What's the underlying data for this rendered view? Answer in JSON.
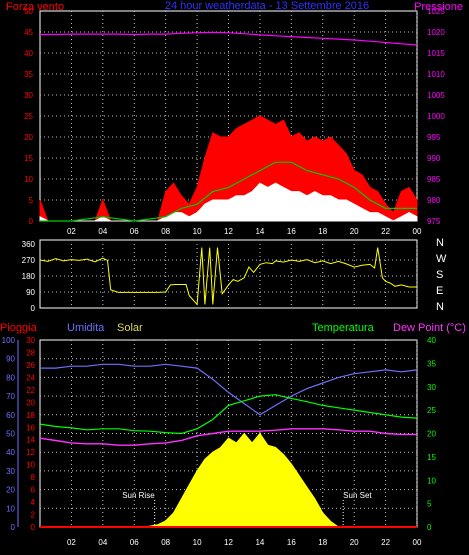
{
  "header": {
    "left_label": "Forza vento",
    "title": "24 hour weatherdata - 13 Settembre 2016",
    "right_label": "Pressione"
  },
  "x_ticks": [
    "02",
    "04",
    "06",
    "08",
    "10",
    "12",
    "14",
    "16",
    "18",
    "20",
    "22",
    "00"
  ],
  "colors": {
    "wind_gust": "#ff0000",
    "wind_avg": "#ffffff",
    "wind_avg2": "#00cc00",
    "pressure": "#ff00ff",
    "direction": "#ffff00",
    "rain": "#ff0000",
    "humidity": "#6f6fff",
    "solar": "#ffff00",
    "temperature": "#00ff00",
    "dew_point": "#ff33ff",
    "grid": "#c0c0c0",
    "frame": "#ffffff",
    "title": "#3030ff"
  },
  "chart_data": [
    {
      "type": "line",
      "name": "wind-pressure",
      "title": "24 hour weatherdata - 13 Settembre 2016",
      "x_ticks": [
        "02",
        "04",
        "06",
        "08",
        "10",
        "12",
        "14",
        "16",
        "18",
        "20",
        "22",
        "00"
      ],
      "y_left": {
        "label": "Forza vento",
        "range": [
          0,
          50
        ],
        "ticks": [
          0,
          5,
          10,
          15,
          20,
          25,
          30,
          35,
          40,
          45,
          50
        ]
      },
      "y_right": {
        "label": "Pressione",
        "range": [
          975,
          1025
        ],
        "ticks": [
          975,
          980,
          985,
          990,
          995,
          1000,
          1005,
          1010,
          1015,
          1020,
          1025
        ]
      },
      "grid": true,
      "series": [
        {
          "name": "gust",
          "axis": "left",
          "x": [
            0,
            0.5,
            1,
            1.5,
            2,
            2.5,
            3,
            3.5,
            4,
            4.5,
            5,
            5.5,
            6,
            6.5,
            7,
            7.5,
            8,
            8.5,
            9,
            9.5,
            10,
            10.5,
            11,
            11.5,
            12,
            12.5,
            13,
            13.5,
            14,
            14.5,
            15,
            15.5,
            16,
            16.5,
            17,
            17.5,
            18,
            18.5,
            19,
            19.5,
            20,
            20.5,
            21,
            21.5,
            22,
            22.5,
            23,
            23.5,
            24
          ],
          "values": [
            5,
            0,
            0,
            0,
            0,
            0,
            0,
            0,
            5,
            0,
            0,
            0,
            0,
            0,
            0,
            0,
            7,
            9,
            6,
            4,
            8,
            15,
            21,
            20,
            20,
            22,
            23,
            24,
            25,
            24,
            23,
            24,
            20,
            21,
            19,
            20,
            19,
            20,
            18,
            16,
            12,
            11,
            8,
            7,
            4,
            2,
            7,
            8,
            5
          ]
        },
        {
          "name": "average",
          "axis": "left",
          "x": [
            0,
            0.5,
            1,
            1.5,
            2,
            2.5,
            3,
            3.5,
            4,
            4.5,
            5,
            5.5,
            6,
            6.5,
            7,
            7.5,
            8,
            8.5,
            9,
            9.5,
            10,
            10.5,
            11,
            11.5,
            12,
            12.5,
            13,
            13.5,
            14,
            14.5,
            15,
            15.5,
            16,
            16.5,
            17,
            17.5,
            18,
            18.5,
            19,
            19.5,
            20,
            20.5,
            21,
            21.5,
            22,
            22.5,
            23,
            23.5,
            24
          ],
          "values": [
            1,
            0,
            0,
            0,
            0,
            0,
            0,
            0,
            1,
            0,
            0,
            0,
            0,
            0,
            0,
            0,
            1,
            2,
            2,
            1,
            2,
            4,
            5,
            5,
            5,
            6,
            6,
            7,
            9,
            8,
            9,
            8,
            7,
            7,
            6,
            7,
            6,
            6,
            5,
            5,
            4,
            3,
            2,
            2,
            1,
            0,
            1,
            2,
            1
          ]
        },
        {
          "name": "avg-smooth",
          "axis": "left",
          "x": [
            0,
            2,
            4,
            6,
            8,
            9,
            10,
            11,
            12,
            13,
            14,
            15,
            16,
            17,
            18,
            19,
            20,
            21,
            22,
            23,
            24
          ],
          "values": [
            0,
            0,
            1,
            0,
            1,
            3,
            4,
            7,
            8,
            10,
            12,
            14,
            14,
            12,
            11,
            10,
            8,
            5,
            3,
            3,
            3
          ]
        },
        {
          "name": "pressure",
          "axis": "right",
          "x": [
            0,
            1,
            2,
            3,
            4,
            5,
            6,
            7,
            8,
            9,
            10,
            11,
            12,
            13,
            14,
            15,
            16,
            17,
            18,
            19,
            20,
            21,
            22,
            23,
            24
          ],
          "values": [
            1019.4,
            1019.4,
            1019.5,
            1019.5,
            1019.5,
            1019.5,
            1019.4,
            1019.5,
            1019.5,
            1019.7,
            1019.8,
            1019.9,
            1019.8,
            1019.6,
            1019.3,
            1019.1,
            1018.9,
            1018.7,
            1018.5,
            1018.3,
            1018.1,
            1017.8,
            1017.5,
            1017.2,
            1016.9
          ]
        }
      ]
    },
    {
      "type": "line",
      "name": "wind-direction",
      "x_ticks": [
        "02",
        "04",
        "06",
        "08",
        "10",
        "12",
        "14",
        "16",
        "18",
        "20",
        "22",
        "00"
      ],
      "y_left": {
        "range": [
          0,
          360
        ],
        "ticks": [
          0,
          90,
          180,
          270,
          360
        ]
      },
      "y_right": {
        "ticks": [
          "N",
          "W",
          "S",
          "E",
          "N"
        ]
      },
      "grid": true,
      "series": [
        {
          "name": "direction",
          "x": [
            0,
            0.5,
            1,
            1.5,
            2,
            2.5,
            3,
            3.5,
            4,
            4.3,
            4.5,
            5,
            6,
            7,
            7.5,
            8,
            8.3,
            8.6,
            9,
            9.3,
            9.5,
            10,
            10.3,
            10.5,
            10.8,
            11,
            11.3,
            11.6,
            12,
            12.3,
            12.6,
            13,
            13.3,
            13.6,
            14,
            14.4,
            14.8,
            15,
            15.5,
            16,
            16.5,
            17,
            17.5,
            18,
            18.5,
            19,
            19.5,
            20,
            20.5,
            21,
            21.3,
            21.5,
            21.8,
            22,
            22.3,
            22.6,
            23,
            23.5,
            24
          ],
          "values": [
            270,
            262,
            278,
            265,
            272,
            268,
            275,
            260,
            280,
            268,
            102,
            88,
            88,
            88,
            88,
            90,
            130,
            132,
            132,
            132,
            70,
            20,
            340,
            20,
            340,
            20,
            340,
            80,
            130,
            160,
            150,
            170,
            230,
            200,
            245,
            255,
            250,
            265,
            258,
            270,
            262,
            272,
            255,
            265,
            250,
            262,
            248,
            230,
            240,
            245,
            225,
            340,
            170,
            150,
            140,
            122,
            130,
            118,
            118
          ]
        }
      ]
    },
    {
      "type": "line",
      "name": "temperature-humidity",
      "x_ticks": [
        "02",
        "04",
        "06",
        "08",
        "10",
        "12",
        "14",
        "16",
        "18",
        "20",
        "22",
        "00"
      ],
      "labels": {
        "rain": "Pioggia",
        "humidity": "Umidita",
        "solar": "Solar",
        "temperature": "Temperatura",
        "dew_point": "Dew Point (°C)"
      },
      "annotations": [
        {
          "text": "Sun Rise",
          "x": 7.3
        },
        {
          "text": "Sun Set",
          "x": 19.3
        }
      ],
      "y_left_humidity": {
        "range": [
          0,
          100
        ],
        "ticks": [
          0,
          10,
          20,
          30,
          40,
          50,
          60,
          70,
          80,
          90,
          100
        ]
      },
      "y_left_rain": {
        "range": [
          0,
          30
        ],
        "ticks": [
          0,
          2,
          4,
          6,
          8,
          10,
          12,
          14,
          16,
          18,
          20,
          22,
          24,
          26,
          28,
          30
        ]
      },
      "y_right_temperature": {
        "range": [
          0,
          40
        ],
        "ticks": [
          0,
          5,
          10,
          15,
          20,
          25,
          30,
          35,
          40
        ]
      },
      "grid": true,
      "series": [
        {
          "name": "humidity",
          "axis": "humidity",
          "x": [
            0,
            1,
            2,
            3,
            4,
            5,
            6,
            7,
            8,
            9,
            10,
            11,
            12,
            13,
            14,
            15,
            16,
            17,
            18,
            19,
            20,
            21,
            22,
            23,
            24
          ],
          "values": [
            85,
            85,
            86,
            86,
            87,
            87,
            86,
            86,
            87,
            86,
            85,
            79,
            72,
            66,
            60,
            65,
            70,
            74,
            77,
            80,
            82,
            83,
            84,
            83,
            84
          ]
        },
        {
          "name": "temperature",
          "axis": "temperature",
          "x": [
            0,
            1,
            2,
            3,
            4,
            5,
            6,
            7,
            8,
            9,
            10,
            11,
            12,
            13,
            14,
            15,
            16,
            17,
            18,
            19,
            20,
            21,
            22,
            23,
            24
          ],
          "values": [
            22,
            21.5,
            21.2,
            20.8,
            21,
            21,
            20.6,
            20.5,
            20.2,
            20,
            21,
            23,
            26,
            27,
            28,
            28.3,
            27.5,
            26.8,
            26,
            25.5,
            25,
            24.5,
            24,
            23.5,
            23.3
          ]
        },
        {
          "name": "dew_point",
          "axis": "temperature",
          "x": [
            0,
            1,
            2,
            3,
            4,
            5,
            6,
            7,
            8,
            9,
            10,
            11,
            12,
            13,
            14,
            15,
            16,
            17,
            18,
            19,
            20,
            21,
            22,
            23,
            24
          ],
          "values": [
            19,
            18.5,
            18,
            17.8,
            17.8,
            17.5,
            17.5,
            17.8,
            18,
            18.5,
            19.5,
            20,
            20.5,
            20.5,
            20.5,
            20.7,
            21,
            21,
            21,
            20.8,
            20.5,
            20.5,
            20,
            19.8,
            19.8
          ]
        },
        {
          "name": "solar",
          "axis": "temperature",
          "x": [
            0,
            6.5,
            7,
            7.5,
            8,
            8.5,
            9,
            9.5,
            10,
            10.5,
            11,
            11.5,
            12,
            12.5,
            13,
            13.5,
            14,
            14.5,
            15,
            15.5,
            16,
            16.5,
            17,
            17.5,
            18,
            18.5,
            19,
            24
          ],
          "values": [
            0,
            0,
            0.2,
            0.5,
            1.3,
            3,
            6,
            9,
            12,
            14.5,
            16,
            17,
            19,
            18,
            20,
            18,
            20,
            17.5,
            17,
            15.5,
            13.5,
            11,
            8.5,
            6,
            3,
            1.2,
            0,
            0
          ]
        },
        {
          "name": "rain",
          "axis": "rain",
          "x": [
            0,
            24
          ],
          "values": [
            0,
            0
          ]
        }
      ]
    }
  ]
}
